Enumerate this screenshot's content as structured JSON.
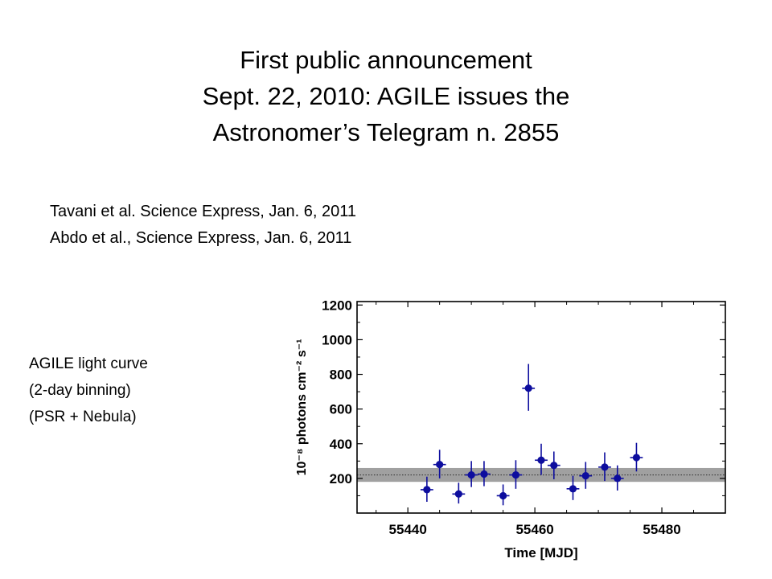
{
  "slide": {
    "title_lines": [
      "First public announcement",
      "Sept. 22, 2010: AGILE issues the",
      "Astronomer’s Telegram n. 2855"
    ],
    "references": [
      "Tavani et al. Science Express, Jan. 6, 2011",
      "Abdo et al., Science Express, Jan. 6, 2011"
    ],
    "caption_lines": [
      "AGILE light curve",
      "(2-day binning)",
      "(PSR + Nebula)"
    ]
  },
  "chart_data": {
    "type": "scatter",
    "xlabel": "Time [MJD]",
    "ylabel": "10⁻⁸ photons cm⁻² s⁻¹",
    "xlim": [
      55432,
      55490
    ],
    "ylim": [
      0,
      1220
    ],
    "xticks": [
      55440,
      55460,
      55480
    ],
    "yticks": [
      200,
      400,
      600,
      800,
      1000,
      1200
    ],
    "grid": false,
    "legend": "none",
    "colors": {
      "points": "#0d0d9e",
      "band": "#a0a0a0",
      "reference_line": "#2b2b2b",
      "axes": "#000000"
    },
    "reference_band": {
      "low": 180,
      "high": 260,
      "line": 220
    },
    "points": [
      {
        "x": 55443,
        "y": 135,
        "xerr": 1,
        "ylo": 65,
        "yhi": 210
      },
      {
        "x": 55445,
        "y": 280,
        "xerr": 1,
        "ylo": 200,
        "yhi": 365
      },
      {
        "x": 55448,
        "y": 110,
        "xerr": 1,
        "ylo": 55,
        "yhi": 175
      },
      {
        "x": 55450,
        "y": 220,
        "xerr": 1,
        "ylo": 150,
        "yhi": 300
      },
      {
        "x": 55452,
        "y": 225,
        "xerr": 1,
        "ylo": 155,
        "yhi": 300
      },
      {
        "x": 55455,
        "y": 100,
        "xerr": 1,
        "ylo": 45,
        "yhi": 165
      },
      {
        "x": 55457,
        "y": 220,
        "xerr": 1,
        "ylo": 140,
        "yhi": 305
      },
      {
        "x": 55459,
        "y": 720,
        "xerr": 1,
        "ylo": 590,
        "yhi": 860
      },
      {
        "x": 55461,
        "y": 305,
        "xerr": 1,
        "ylo": 220,
        "yhi": 400
      },
      {
        "x": 55463,
        "y": 275,
        "xerr": 1,
        "ylo": 195,
        "yhi": 355
      },
      {
        "x": 55466,
        "y": 140,
        "xerr": 1,
        "ylo": 75,
        "yhi": 215
      },
      {
        "x": 55468,
        "y": 215,
        "xerr": 1,
        "ylo": 140,
        "yhi": 295
      },
      {
        "x": 55471,
        "y": 265,
        "xerr": 1,
        "ylo": 185,
        "yhi": 350
      },
      {
        "x": 55473,
        "y": 200,
        "xerr": 1,
        "ylo": 130,
        "yhi": 275
      },
      {
        "x": 55476,
        "y": 320,
        "xerr": 1,
        "ylo": 240,
        "yhi": 405
      }
    ]
  }
}
